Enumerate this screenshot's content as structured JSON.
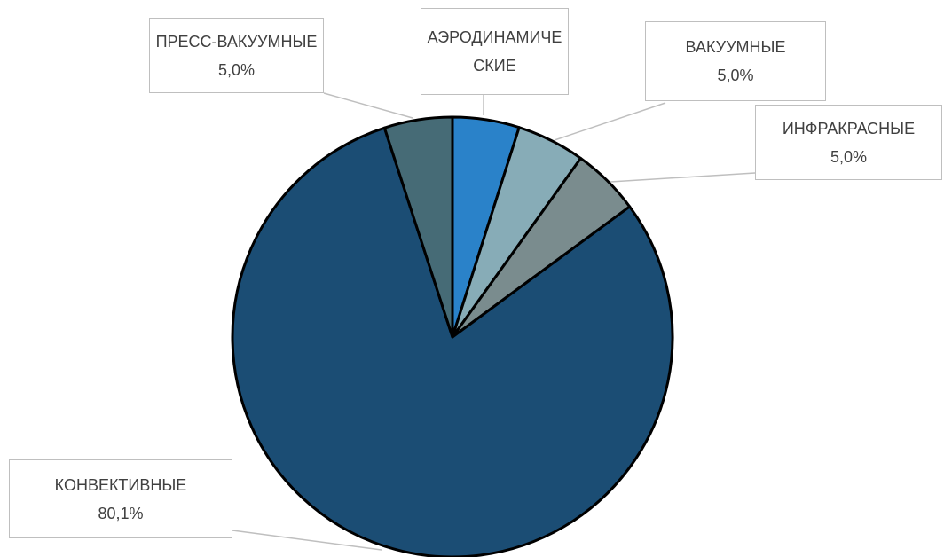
{
  "chart_data": {
    "type": "pie",
    "categories": [
      "АЭРОДИНАМИЧЕСКИЕ",
      "ВАКУУМНЫЕ",
      "ИНФРАКРАСНЫЕ",
      "КОНВЕКТИВНЫЕ",
      "ПРЕСС-ВАКУУМНЫЕ"
    ],
    "values": [
      4.9,
      5.0,
      5.0,
      80.1,
      5.0
    ],
    "value_labels": [
      null,
      "5,0%",
      "5,0%",
      "80,1%",
      "5,0%"
    ],
    "colors": [
      "#2a82c9",
      "#87acb7",
      "#7a8c8e",
      "#1b4d74",
      "#466b76"
    ]
  }
}
